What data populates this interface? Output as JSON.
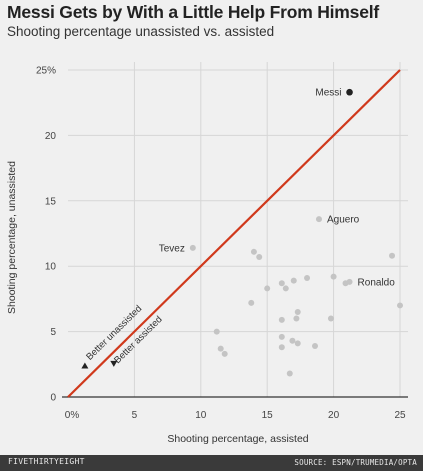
{
  "chart_data": {
    "type": "scatter",
    "title": "Messi Gets by With a Little Help From Himself",
    "subtitle": "Shooting percentage unassisted vs. assisted",
    "xlabel": "Shooting percentage, assisted",
    "ylabel": "Shooting percentage, unassisted",
    "xlim": [
      0,
      25
    ],
    "ylim": [
      0,
      25
    ],
    "x_ticks": [
      "0%",
      "5",
      "10",
      "15",
      "20",
      "25"
    ],
    "y_ticks": [
      "0",
      "5",
      "10",
      "15",
      "20",
      "25%"
    ],
    "grid": true,
    "reference_line": {
      "from": [
        0,
        0
      ],
      "to": [
        25,
        25
      ],
      "color": "#d0391c"
    },
    "annotations": {
      "better_unassisted": "Better unassisted",
      "better_assisted": "Better assisted"
    },
    "points": [
      {
        "x": 21.2,
        "y": 23.3,
        "label": "Messi",
        "highlight": true
      },
      {
        "x": 9.4,
        "y": 11.4,
        "label": "Tevez"
      },
      {
        "x": 18.9,
        "y": 13.6,
        "label": "Aguero"
      },
      {
        "x": 21.2,
        "y": 8.8,
        "label": "Ronaldo"
      },
      {
        "x": 14.0,
        "y": 11.1
      },
      {
        "x": 14.4,
        "y": 10.7
      },
      {
        "x": 13.8,
        "y": 7.2
      },
      {
        "x": 15.0,
        "y": 8.3
      },
      {
        "x": 16.1,
        "y": 8.7
      },
      {
        "x": 16.4,
        "y": 8.3
      },
      {
        "x": 17.0,
        "y": 8.9
      },
      {
        "x": 18.0,
        "y": 9.1
      },
      {
        "x": 20.0,
        "y": 9.2
      },
      {
        "x": 20.9,
        "y": 8.7
      },
      {
        "x": 24.4,
        "y": 10.8
      },
      {
        "x": 25.0,
        "y": 7.0
      },
      {
        "x": 17.3,
        "y": 6.5
      },
      {
        "x": 17.2,
        "y": 6.0
      },
      {
        "x": 16.1,
        "y": 5.9
      },
      {
        "x": 16.1,
        "y": 4.6
      },
      {
        "x": 16.1,
        "y": 3.8
      },
      {
        "x": 16.9,
        "y": 4.3
      },
      {
        "x": 17.3,
        "y": 4.1
      },
      {
        "x": 18.6,
        "y": 3.9
      },
      {
        "x": 19.8,
        "y": 6.0
      },
      {
        "x": 11.2,
        "y": 5.0
      },
      {
        "x": 11.5,
        "y": 3.7
      },
      {
        "x": 11.8,
        "y": 3.3
      },
      {
        "x": 16.7,
        "y": 1.8
      }
    ]
  },
  "footer": {
    "brand": "FIVETHIRTYEIGHT",
    "source": "SOURCE: ESPN/TRUMEDIA/OPTA"
  },
  "colors": {
    "background": "#f0f0f0",
    "grid": "#d6d6d6",
    "axis": "#333333",
    "point": "#c4c4c4",
    "highlight_point": "#222222",
    "line": "#d0391c"
  }
}
